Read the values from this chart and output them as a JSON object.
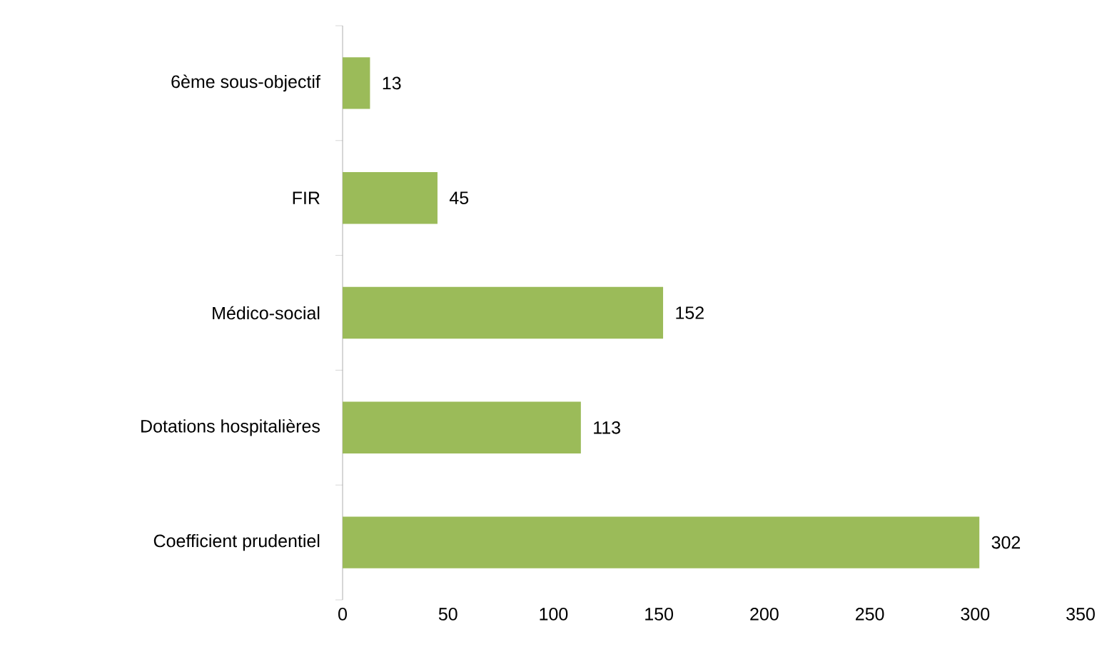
{
  "chart_data": {
    "type": "bar",
    "orientation": "horizontal",
    "categories": [
      "6ème sous-objectif",
      "FIR",
      "Médico-social",
      "Dotations hospitalières",
      "Coefficient prudentiel"
    ],
    "values": [
      13,
      45,
      152,
      113,
      302
    ],
    "color": "#9bbb59",
    "xlim": [
      0,
      350
    ],
    "xticks": [
      0,
      50,
      100,
      150,
      200,
      250,
      300,
      350
    ],
    "data_labels": true
  }
}
